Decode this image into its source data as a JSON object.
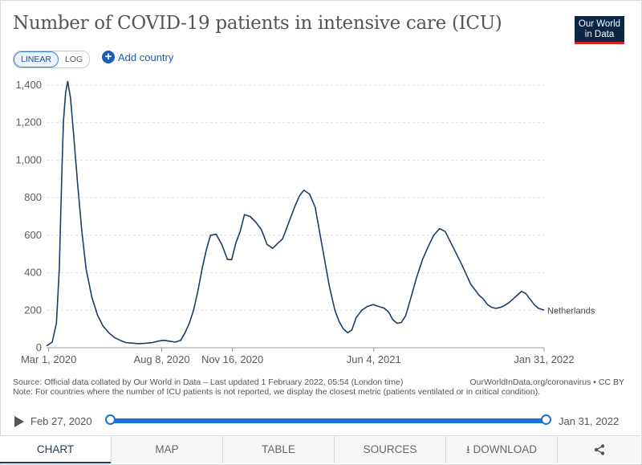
{
  "header": {
    "title": "Number of COVID-19 patients in intensive care (ICU)",
    "logo_line1": "Our World",
    "logo_line2": "in Data"
  },
  "controls": {
    "linear_label": "LINEAR",
    "log_label": "LOG",
    "add_country_label": "Add country"
  },
  "chart_data": {
    "type": "line",
    "title": "Number of COVID-19 patients in intensive care (ICU)",
    "xlabel": "",
    "ylabel": "",
    "ylim": [
      0,
      1400
    ],
    "yticks": [
      0,
      200,
      400,
      600,
      800,
      1000,
      1200,
      1400
    ],
    "ytick_labels": [
      "0",
      "200",
      "400",
      "600",
      "800",
      "1,000",
      "1,200",
      "1,400"
    ],
    "xticks": [
      {
        "day": 3,
        "label": "Mar 1, 2020"
      },
      {
        "day": 163,
        "label": "Aug 8, 2020"
      },
      {
        "day": 263,
        "label": "Nov 16, 2020"
      },
      {
        "day": 463,
        "label": "Jun 4, 2021"
      },
      {
        "day": 704,
        "label": "Jan 31, 2022"
      }
    ],
    "xlim": [
      0,
      704
    ],
    "grid": true,
    "series": [
      {
        "name": "Netherlands",
        "x": [
          0,
          8,
          14,
          18,
          20,
          22,
          24,
          27,
          30,
          34,
          38,
          44,
          50,
          56,
          64,
          72,
          80,
          88,
          96,
          104,
          112,
          120,
          130,
          140,
          150,
          158,
          166,
          174,
          182,
          190,
          196,
          202,
          208,
          214,
          220,
          226,
          232,
          240,
          248,
          256,
          262,
          268,
          274,
          280,
          288,
          296,
          304,
          312,
          320,
          328,
          334,
          340,
          346,
          352,
          358,
          364,
          372,
          380,
          390,
          400,
          408,
          414,
          420,
          426,
          432,
          438,
          446,
          454,
          462,
          470,
          478,
          484,
          490,
          496,
          502,
          508,
          512,
          518,
          524,
          532,
          540,
          548,
          556,
          564,
          572,
          580,
          588,
          594,
          600,
          606,
          612,
          618,
          624,
          630,
          636,
          642,
          648,
          654,
          660,
          666,
          672,
          678,
          684,
          690,
          696,
          704
        ],
        "values": [
          10,
          30,
          130,
          420,
          700,
          980,
          1210,
          1360,
          1420,
          1330,
          1150,
          870,
          620,
          420,
          270,
          175,
          115,
          80,
          55,
          40,
          28,
          25,
          22,
          24,
          28,
          35,
          40,
          35,
          30,
          40,
          80,
          130,
          200,
          300,
          420,
          520,
          600,
          605,
          550,
          470,
          470,
          560,
          620,
          710,
          700,
          670,
          630,
          550,
          530,
          560,
          580,
          640,
          700,
          760,
          810,
          840,
          820,
          750,
          540,
          330,
          200,
          140,
          100,
          80,
          95,
          160,
          200,
          220,
          230,
          220,
          210,
          190,
          150,
          130,
          135,
          170,
          220,
          300,
          380,
          470,
          540,
          600,
          635,
          620,
          560,
          500,
          440,
          390,
          340,
          310,
          280,
          260,
          230,
          215,
          210,
          215,
          225,
          240,
          260,
          280,
          300,
          290,
          260,
          230,
          210,
          200
        ]
      }
    ]
  },
  "footer": {
    "source": "Source: Official data collated by Our World in Data – Last updated 1 February 2022, 05:54 (London time)",
    "site": "OurWorldInData.org/coronavirus • CC BY",
    "note": "Note: For countries where the number of ICU patients is not reported, we display the closest metric (patients ventilated or in critical condition)."
  },
  "timeline": {
    "start_label": "Feb 27, 2020",
    "end_label": "Jan 31, 2022"
  },
  "tabs": {
    "chart": "CHART",
    "map": "MAP",
    "table": "TABLE",
    "sources": "SOURCES",
    "download": "DOWNLOAD"
  },
  "colors": {
    "line": "#1d3d63",
    "grid": "#dddddd",
    "axis": "#5b5b5b",
    "accent": "#1a72d4"
  }
}
